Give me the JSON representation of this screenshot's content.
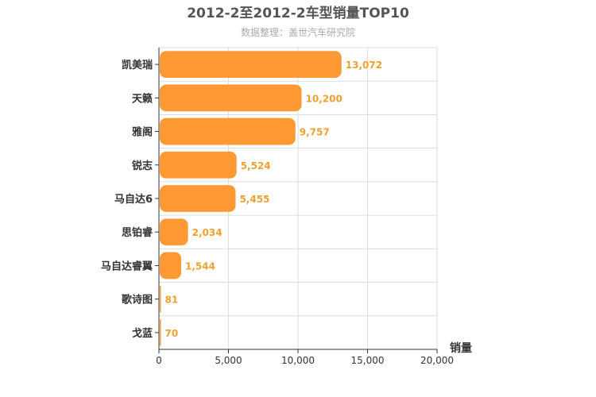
{
  "chart_data": {
    "type": "bar",
    "orientation": "horizontal",
    "title": "2012-2至2012-2车型销量TOP10",
    "subtitle": "数据整理：盖世汽车研究院",
    "categories": [
      "凯美瑞",
      "天籁",
      "雅阁",
      "锐志",
      "马自达6",
      "思铂睿",
      "马自达睿翼",
      "歌诗图",
      "戈蓝"
    ],
    "values": [
      13072,
      10200,
      9757,
      5524,
      5455,
      2034,
      1544,
      81,
      70
    ],
    "value_labels": [
      "13,072",
      "10,200",
      "9,757",
      "5,524",
      "5,455",
      "2,034",
      "1,544",
      "81",
      "70"
    ],
    "xlabel": "销量",
    "xlim": [
      0,
      20000
    ],
    "xticks": [
      0,
      5000,
      10000,
      15000,
      20000
    ],
    "xtick_labels": [
      "0",
      "5,000",
      "10,000",
      "15,000",
      "20,000"
    ],
    "grid": true,
    "bar_color": "#FF9933",
    "label_color": "#F0A030"
  }
}
